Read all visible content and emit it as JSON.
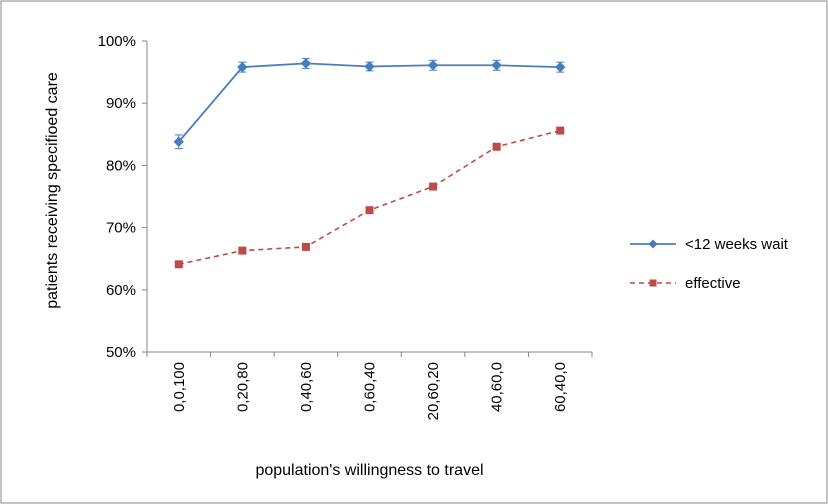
{
  "chart_data": {
    "type": "line",
    "title": "",
    "xlabel": "population's willingness to travel",
    "ylabel": "patients receiving specifioed care",
    "ylim": [
      0.5,
      1.0
    ],
    "yticks": [
      0.5,
      0.6,
      0.7,
      0.8,
      0.9,
      1.0
    ],
    "ytick_labels": [
      "50%",
      "60%",
      "70%",
      "80%",
      "90%",
      "100%"
    ],
    "categories": [
      "0,0,100",
      "0,20,80",
      "0,40,60",
      "0,60,40",
      "20,60,20",
      "40,60,0",
      "60,40,0"
    ],
    "grid": false,
    "legend_position": "right",
    "series": [
      {
        "name": "<12 weeks wait",
        "values": [
          0.838,
          0.958,
          0.964,
          0.959,
          0.961,
          0.961,
          0.958
        ],
        "errors": [
          0.011,
          0.008,
          0.008,
          0.007,
          0.008,
          0.008,
          0.008
        ],
        "color": "#4a7ebb",
        "marker": "diamond",
        "line_style": "solid"
      },
      {
        "name": "effective",
        "values": [
          0.641,
          0.663,
          0.669,
          0.728,
          0.766,
          0.83,
          0.856
        ],
        "errors": [
          0.003,
          0.003,
          0.003,
          0.003,
          0.003,
          0.003,
          0.003
        ],
        "color": "#be4b48",
        "marker": "square",
        "line_style": "dashed"
      }
    ]
  }
}
